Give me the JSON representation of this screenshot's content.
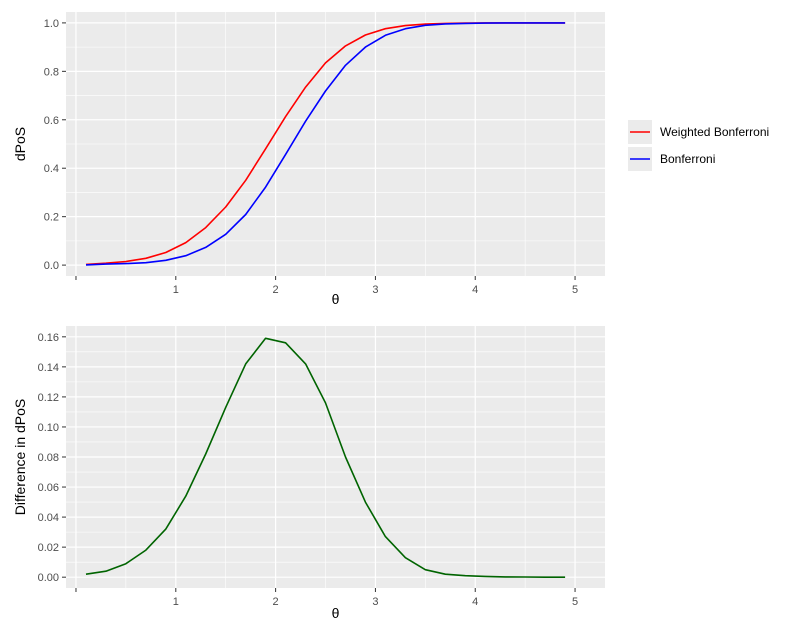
{
  "chart_data": [
    {
      "type": "line",
      "xlabel": "θ",
      "ylabel": "dPoS",
      "xlim": [
        0,
        5
      ],
      "ylim": [
        0,
        1
      ],
      "x_ticks": [
        1,
        2,
        3,
        4,
        5
      ],
      "y_ticks": [
        "0.0",
        "0.2",
        "0.4",
        "0.6",
        "0.8",
        "1.0"
      ],
      "grid": true,
      "legend_position": "right",
      "x": [
        0.1,
        0.3,
        0.5,
        0.7,
        0.9,
        1.1,
        1.3,
        1.5,
        1.7,
        1.9,
        2.1,
        2.3,
        2.5,
        2.7,
        2.9,
        3.1,
        3.3,
        3.5,
        3.7,
        3.9,
        4.1,
        4.3,
        4.5,
        4.7,
        4.9
      ],
      "series": [
        {
          "name": "Weighted Bonferroni",
          "color": "#ff0000",
          "values": [
            0.003,
            0.008,
            0.015,
            0.028,
            0.052,
            0.093,
            0.155,
            0.24,
            0.35,
            0.48,
            0.613,
            0.735,
            0.835,
            0.905,
            0.95,
            0.976,
            0.989,
            0.995,
            0.998,
            0.999,
            1.0,
            1.0,
            1.0,
            1.0,
            1.0
          ]
        },
        {
          "name": "Bonferroni",
          "color": "#0000ff",
          "values": [
            0.001,
            0.004,
            0.006,
            0.01,
            0.02,
            0.039,
            0.073,
            0.127,
            0.209,
            0.322,
            0.457,
            0.594,
            0.719,
            0.825,
            0.9,
            0.949,
            0.976,
            0.99,
            0.996,
            0.998,
            0.999,
            1.0,
            1.0,
            1.0,
            1.0
          ]
        }
      ]
    },
    {
      "type": "line",
      "xlabel": "θ",
      "ylabel": "Difference in dPoS",
      "xlim": [
        0,
        5
      ],
      "ylim": [
        0,
        0.16
      ],
      "x_ticks": [
        1,
        2,
        3,
        4,
        5
      ],
      "y_ticks": [
        "0.00",
        "0.02",
        "0.04",
        "0.06",
        "0.08",
        "0.10",
        "0.12",
        "0.14",
        "0.16"
      ],
      "grid": true,
      "x": [
        0.1,
        0.3,
        0.5,
        0.7,
        0.9,
        1.1,
        1.3,
        1.5,
        1.7,
        1.9,
        2.1,
        2.3,
        2.5,
        2.7,
        2.9,
        3.1,
        3.3,
        3.5,
        3.7,
        3.9,
        4.1,
        4.3,
        4.5,
        4.7,
        4.9
      ],
      "series": [
        {
          "color": "#006400",
          "values": [
            0.002,
            0.004,
            0.009,
            0.018,
            0.032,
            0.054,
            0.082,
            0.113,
            0.142,
            0.159,
            0.156,
            0.142,
            0.116,
            0.08,
            0.05,
            0.027,
            0.013,
            0.005,
            0.002,
            0.001,
            0.0005,
            0.0002,
            0.0001,
            0.0,
            0.0
          ]
        }
      ]
    }
  ]
}
